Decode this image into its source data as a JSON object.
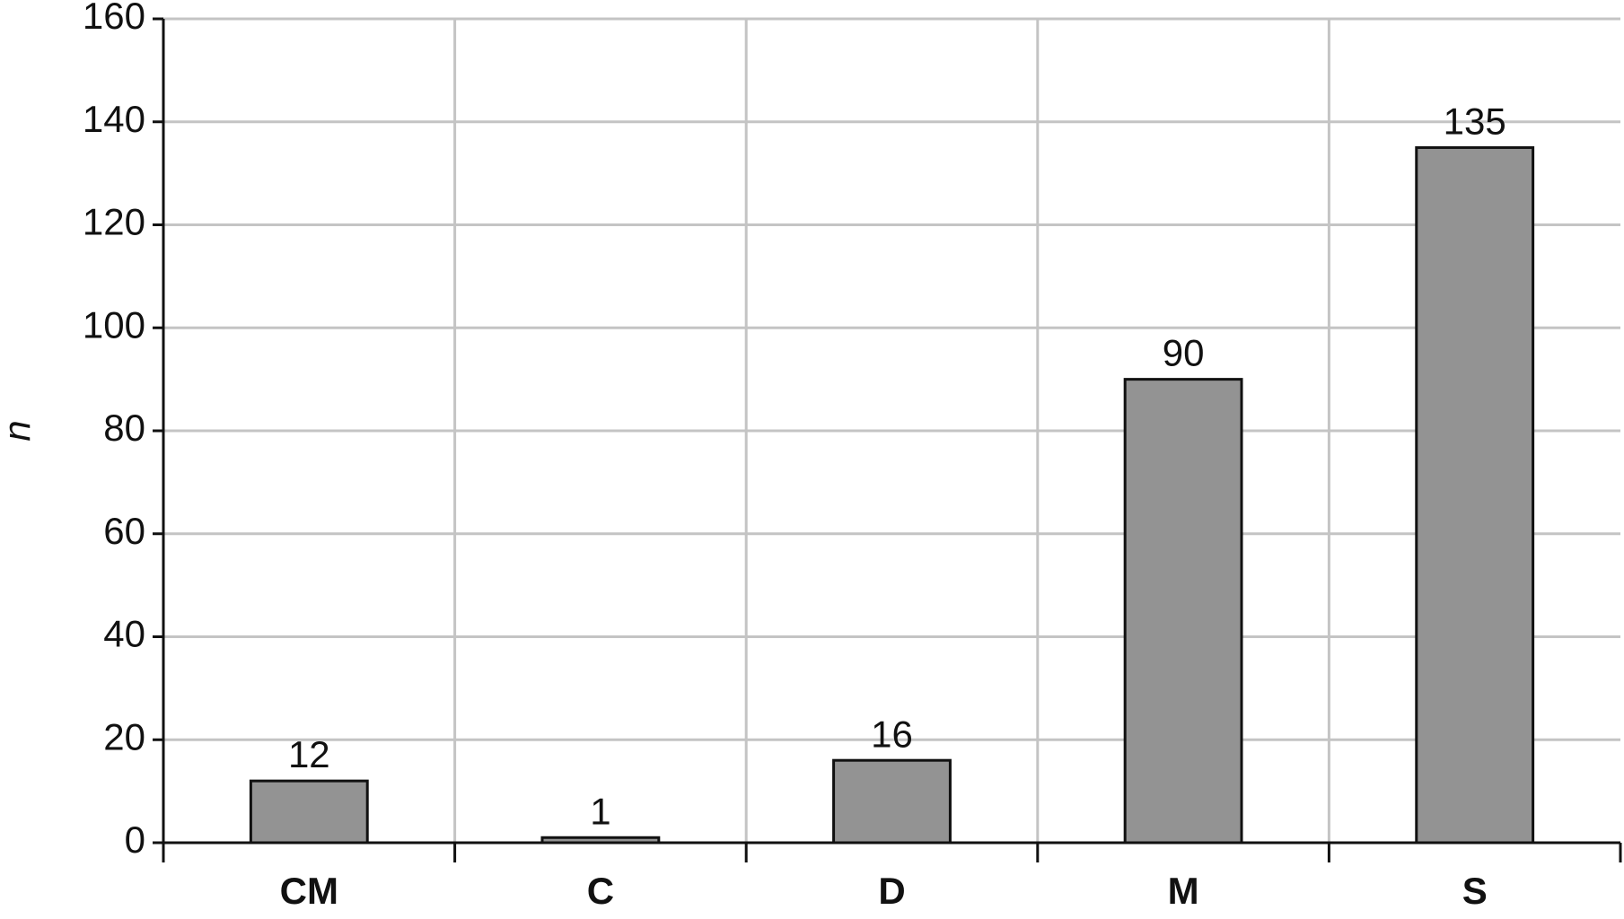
{
  "chart_data": {
    "type": "bar",
    "y_label": "n",
    "categories": [
      "CM",
      "C",
      "D",
      "M",
      "S"
    ],
    "values": [
      12,
      1,
      16,
      90,
      135
    ],
    "color": "#939393",
    "ylim": [
      0,
      160
    ],
    "yticks": [
      0,
      20,
      40,
      60,
      80,
      100,
      120,
      140,
      160
    ],
    "grid": true
  }
}
